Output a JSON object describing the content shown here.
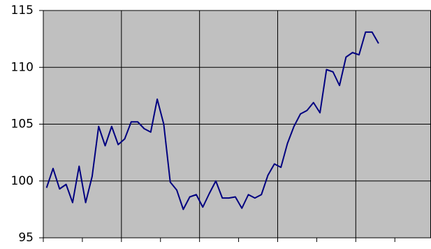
{
  "chart_data": {
    "type": "line",
    "x": [
      1,
      2,
      3,
      4,
      5,
      6,
      7,
      8,
      9,
      10,
      11,
      12,
      13,
      14,
      15,
      16,
      17,
      18,
      19,
      20,
      21,
      22,
      23,
      24,
      25,
      26,
      27,
      28,
      29,
      30,
      31,
      32,
      33,
      34,
      35,
      36,
      37,
      38,
      39,
      40,
      41,
      42,
      43,
      44,
      45,
      46,
      47,
      48,
      49,
      50,
      51,
      52
    ],
    "series": [
      {
        "color": "#000080",
        "values": [
          99.4,
          101.1,
          99.3,
          99.7,
          98.1,
          101.3,
          98.1,
          100.4,
          104.8,
          103.1,
          104.8,
          103.2,
          103.7,
          105.2,
          105.2,
          104.6,
          104.3,
          107.2,
          105.0,
          99.9,
          99.2,
          97.5,
          98.6,
          98.8,
          97.7,
          98.9,
          100.0,
          98.5,
          98.5,
          98.6,
          97.6,
          98.8,
          98.5,
          98.8,
          100.5,
          101.5,
          101.2,
          103.3,
          104.8,
          105.9,
          106.2,
          106.9,
          106.0,
          109.8,
          109.6,
          108.4,
          110.9,
          111.3,
          111.1,
          113.1,
          113.1,
          112.1
        ]
      }
    ],
    "xlim": [
      0.5,
      60
    ],
    "xticks": [
      0.5,
      6.5,
      12.5,
      18.5,
      24.5,
      30.5,
      36.5,
      42.5,
      48.5,
      54.5
    ],
    "xgridlines": [
      12.5,
      24.5,
      36.5,
      48.5
    ],
    "ylim": [
      95,
      115
    ],
    "yticks": [
      95,
      100,
      105,
      110,
      115
    ],
    "grid": true,
    "background": "#c0c0c0"
  }
}
